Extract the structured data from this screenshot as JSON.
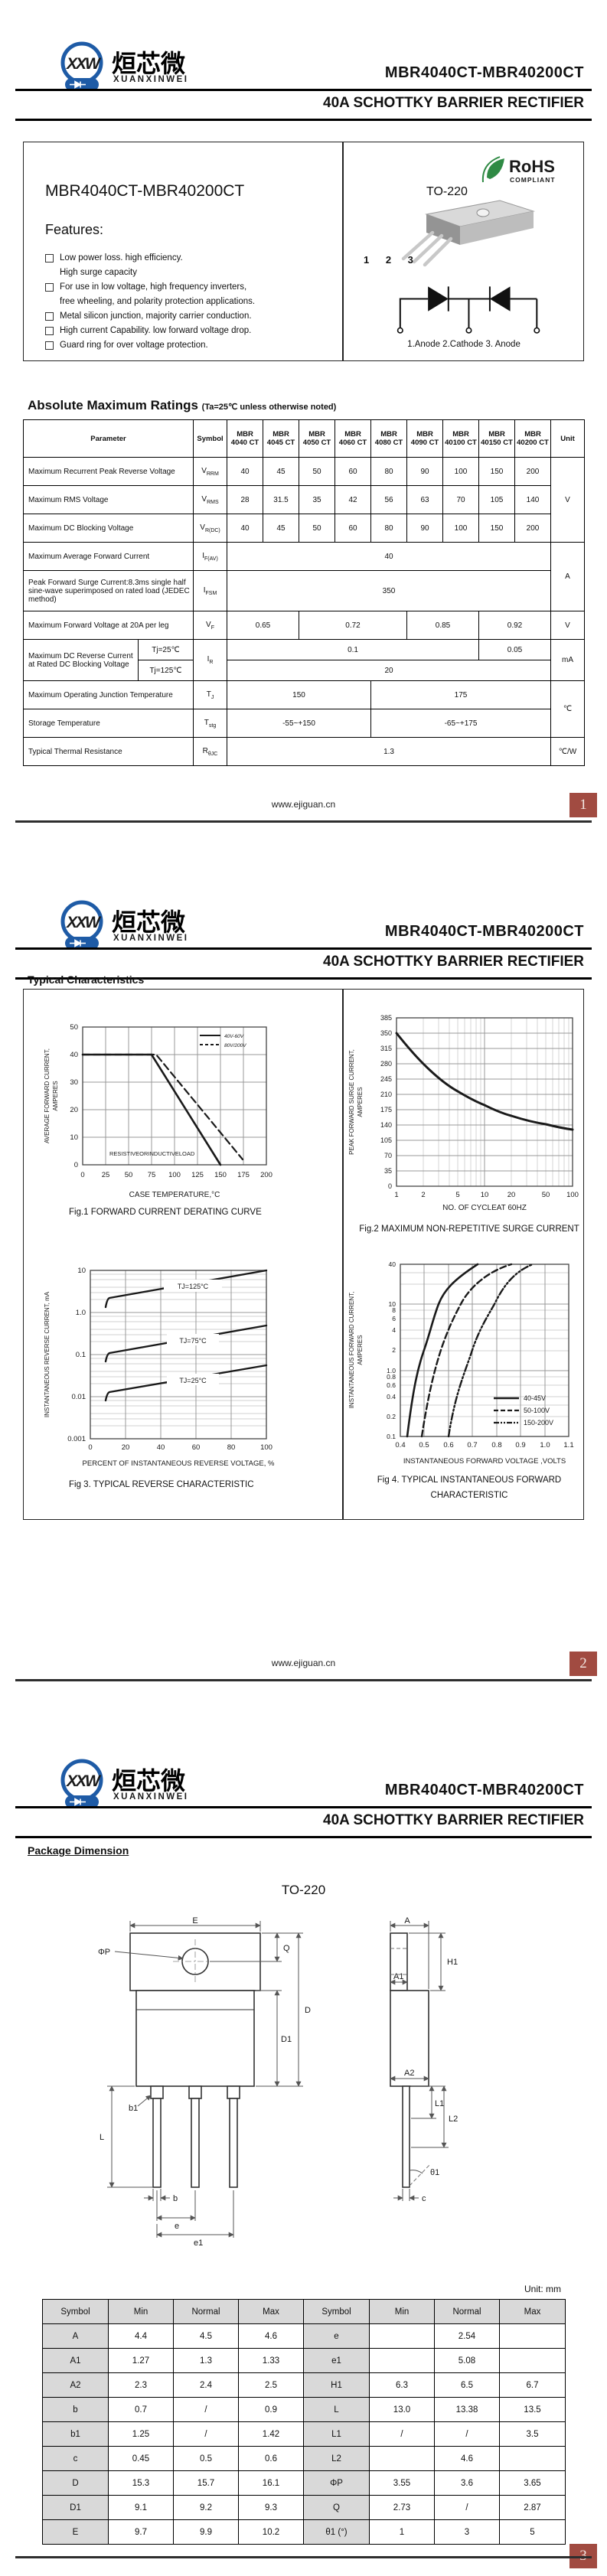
{
  "doc": {
    "brand": {
      "initials_x1": "X",
      "initials_x2": "X",
      "initials_w": "W",
      "name_cn": "烜芯微",
      "name_en": "XUANXINWEI"
    },
    "part_range": "MBR4040CT-MBR40200CT",
    "subtitle": "40A SCHOTTKY BARRIER RECTIFIER",
    "website": "www.ejiguan.cn",
    "accent_red": "#a14b41",
    "rohs_green": "#2f8a44",
    "logo_blue": "#1e5ba6"
  },
  "page1": {
    "page_no": "1",
    "product": {
      "heading": "MBR4040CT-MBR40200CT",
      "features_title": "Features:",
      "features": [
        [
          "Low power loss. high efficiency.",
          "High surge capacity"
        ],
        [
          "For use in low voltage, high frequency inverters,",
          "free wheeling, and polarity protection applications."
        ],
        [
          "Metal silicon junction, majority carrier conduction."
        ],
        [
          "High current Capability. low forward voltage drop."
        ],
        [
          "Guard ring for over voltage protection."
        ]
      ],
      "package_name": "TO-220",
      "rohs_line1": "RoHS",
      "rohs_line2": "COMPLIANT",
      "pin_numbers": "1 2 3",
      "pin_legend": "1.Anode   2.Cathode   3. Anode"
    },
    "ratings": {
      "title": "Absolute Maximum Ratings",
      "note": "(Ta=25℃ unless otherwise noted)",
      "headers": {
        "parameter": "Parameter",
        "symbol": "Symbol",
        "unit": "Unit",
        "parts": [
          "MBR 4040 CT",
          "MBR 4045 CT",
          "MBR 4050 CT",
          "MBR 4060 CT",
          "MBR 4080 CT",
          "MBR 4090 CT",
          "MBR 40100 CT",
          "MBR 40150 CT",
          "MBR 40200 CT"
        ]
      },
      "rows": {
        "vrrm": {
          "param": "Maximum Recurrent Peak Reverse Voltage",
          "sym": "V",
          "sub": "RRM",
          "vals": [
            "40",
            "45",
            "50",
            "60",
            "80",
            "90",
            "100",
            "150",
            "200"
          ]
        },
        "vrms": {
          "param": "Maximum RMS Voltage",
          "sym": "V",
          "sub": "RMS",
          "vals": [
            "28",
            "31.5",
            "35",
            "42",
            "56",
            "63",
            "70",
            "105",
            "140"
          ]
        },
        "vdc": {
          "param": "Maximum DC Blocking Voltage",
          "sym": "V",
          "sub": "R(DC)",
          "vals": [
            "40",
            "45",
            "50",
            "60",
            "80",
            "90",
            "100",
            "150",
            "200"
          ]
        },
        "ifav": {
          "param": "Maximum Average Forward Current",
          "sym": "I",
          "sub": "F(AV)",
          "val": "40"
        },
        "ifsm": {
          "param": "Peak Forward Surge Current:8.3ms single half sine-wave superimposed on rated load (JEDEC method)",
          "sym": "I",
          "sub": "FSM",
          "val": "350"
        },
        "vf": {
          "param": "Maximum Forward Voltage at 20A per leg",
          "sym": "V",
          "sub": "F",
          "v1": "0.65",
          "v2": "0.72",
          "v3": "0.85",
          "v4": "0.92"
        },
        "ir": {
          "param": "Maximum DC Reverse Current at Rated DC Blocking Voltage",
          "cond1": "Tj=25℃",
          "cond2": "Tj=125℃",
          "sym": "I",
          "sub": "R",
          "v25a": "0.1",
          "v25b": "0.05",
          "v125": "20"
        },
        "tj": {
          "param": "Maximum Operating Junction Temperature",
          "sym": "T",
          "sub": "J",
          "v1": "150",
          "v2": "175"
        },
        "tstg": {
          "param": "Storage Temperature",
          "sym": "T",
          "sub": "stg",
          "v1": "-55~+150",
          "v2": "-65~+175"
        },
        "rth": {
          "param": "Typical Thermal Resistance",
          "sym": "R",
          "sub": "θJC",
          "val": "1.3"
        }
      },
      "units": {
        "v1": "V",
        "a": "A",
        "v2": "V",
        "ma": "mA",
        "c": "℃",
        "cw": "℃/W"
      }
    }
  },
  "page2": {
    "page_no": "2",
    "section_title": "Typical Characteristics"
  },
  "chart_data": [
    {
      "type": "line",
      "title": "Fig.1 FORWARD CURRENT DERATING CURVE",
      "xlabel": "CASE TEMPERATURE,°C",
      "ylabel": "AVERAGE FORWARD CURRENT, AMPERES",
      "ylabel_lines": [
        "AVERAGE FORWARD CURRENT,",
        "AMPERES"
      ],
      "xlim": [
        0,
        200
      ],
      "ylim": [
        0,
        50
      ],
      "xticks": [
        "0",
        "25",
        "50",
        "75",
        "100",
        "125",
        "150",
        "175",
        "200"
      ],
      "yticks": [
        "50",
        "40",
        "30",
        "20",
        "10",
        "0"
      ],
      "grid": true,
      "legend_pos": "top-right",
      "annotation": "RESISTIVEORINDUCTIVELOAD",
      "series": [
        {
          "name": "40V-60V",
          "style": "solid",
          "points": [
            [
              0,
              40
            ],
            [
              75,
              40
            ],
            [
              150,
              0
            ]
          ]
        },
        {
          "name": "80V/200V",
          "style": "dashed",
          "points": [
            [
              0,
              40
            ],
            [
              80,
              40
            ],
            [
              175,
              2
            ]
          ]
        }
      ]
    },
    {
      "type": "line",
      "title": "Fig.2 MAXIMUM NON-REPETITIVE SURGE CURRENT",
      "xlabel": "NO. OF CYCLEAT 60HZ",
      "ylabel": "PEAK FORWARD SURGE CURRENT, AMPERES",
      "ylabel_lines": [
        "PEAK FORWARD SURGE CURRENT,",
        "AMPERES"
      ],
      "xscale": "log",
      "xlim": [
        1,
        100
      ],
      "ylim": [
        0,
        385
      ],
      "xticks": [
        "1",
        "2",
        "5",
        "10",
        "20",
        "50",
        "100"
      ],
      "yticks": [
        "385",
        "350",
        "315",
        "280",
        "245",
        "210",
        "175",
        "140",
        "105",
        "70",
        "35",
        "0"
      ],
      "grid": true,
      "series": [
        {
          "name": "surge current",
          "style": "solid",
          "points": [
            [
              1,
              350
            ],
            [
              2,
              280
            ],
            [
              5,
              220
            ],
            [
              10,
              185
            ],
            [
              20,
              162
            ],
            [
              50,
              142
            ],
            [
              100,
              130
            ]
          ]
        }
      ]
    },
    {
      "type": "line",
      "title": "Fig 3. TYPICAL REVERSE CHARACTERISTIC",
      "xlabel": "PERCENT OF INSTANTANEOUS REVERSE VOLTAGE, %",
      "ylabel": "INSTANTANEOUS  REVERSE  CURRENT, mA",
      "ylabel_lines": [
        "INSTANTANEOUS  REVERSE  CURRENT, mA"
      ],
      "yscale": "log",
      "xlim": [
        0,
        100
      ],
      "ylim": [
        0.001,
        10
      ],
      "xticks": [
        "0",
        "20",
        "40",
        "60",
        "80",
        "100"
      ],
      "yticks": [
        "10",
        "1.0",
        "0.1",
        "0.01",
        "0.001"
      ],
      "grid": true,
      "series": [
        {
          "name": "TJ=125°C",
          "style": "solid",
          "points": [
            [
              10,
              2.2
            ],
            [
              40,
              3.6
            ],
            [
              100,
              10
            ]
          ]
        },
        {
          "name": "TJ=75°C",
          "style": "solid",
          "points": [
            [
              10,
              0.11
            ],
            [
              40,
              0.2
            ],
            [
              100,
              0.5
            ]
          ]
        },
        {
          "name": "TJ=25°C",
          "style": "solid",
          "points": [
            [
              10,
              0.013
            ],
            [
              40,
              0.022
            ],
            [
              100,
              0.055
            ]
          ]
        }
      ]
    },
    {
      "type": "line",
      "title": "Fig 4. TYPICAL INSTANTANEOUS FORWARD CHARACTERISTIC",
      "caption_lines": [
        "Fig 4. TYPICAL INSTANTANEOUS FORWARD",
        "CHARACTERISTIC"
      ],
      "xlabel": "INSTANTANEOUS  FORWARD  VOLTAGE ,VOLTS",
      "ylabel": "INSTANTANEOUS FORWARD CURRENT, AMPERES",
      "ylabel_lines": [
        "INSTANTANEOUS FORWARD CURRENT,",
        "AMPERES"
      ],
      "yscale": "log",
      "xlim": [
        0.4,
        1.1
      ],
      "ylim": [
        0.1,
        40
      ],
      "xticks": [
        "0.4",
        "0.5",
        "0.6",
        "0.7",
        "0.8",
        "0.9",
        "1.0",
        "1.1"
      ],
      "yticks": [
        "40",
        "10",
        "8",
        "6",
        "4",
        "2",
        "1.0",
        "0.8",
        "0.6",
        "0.4",
        "0.2",
        "0.1"
      ],
      "grid": true,
      "legend_pos": "bottom-right",
      "series": [
        {
          "name": "40-45V",
          "style": "solid",
          "points": [
            [
              0.43,
              0.1
            ],
            [
              0.5,
              2
            ],
            [
              0.56,
              10
            ],
            [
              0.72,
              40
            ]
          ]
        },
        {
          "name": "50-100V",
          "style": "dashed",
          "points": [
            [
              0.49,
              0.1
            ],
            [
              0.57,
              2
            ],
            [
              0.65,
              10
            ],
            [
              0.86,
              40
            ]
          ]
        },
        {
          "name": "150-200V",
          "style": "dashdot",
          "points": [
            [
              0.6,
              0.1
            ],
            [
              0.7,
              2
            ],
            [
              0.79,
              10
            ],
            [
              0.95,
              40
            ]
          ]
        }
      ]
    }
  ],
  "page3": {
    "page_no": "3",
    "section_title": "Package Dimension",
    "package_name": "TO-220",
    "unit_note": "Unit: mm",
    "dim_labels": {
      "E": "E",
      "phiP": "ΦP",
      "Q": "Q",
      "D": "D",
      "D1": "D1",
      "L": "L",
      "b": "b",
      "b1": "b1",
      "e": "e",
      "e1": "e1",
      "A": "A",
      "A1": "A1",
      "A2": "A2",
      "H1": "H1",
      "L1": "L1",
      "L2": "L2",
      "c": "c",
      "theta1": "θ1"
    },
    "dim_table": {
      "headers": [
        "Symbol",
        "Min",
        "Normal",
        "Max",
        "Symbol",
        "Min",
        "Normal",
        "Max"
      ],
      "rows": [
        [
          "A",
          "4.4",
          "4.5",
          "4.6",
          "e",
          "",
          "2.54",
          ""
        ],
        [
          "A1",
          "1.27",
          "1.3",
          "1.33",
          "e1",
          "",
          "5.08",
          ""
        ],
        [
          "A2",
          "2.3",
          "2.4",
          "2.5",
          "H1",
          "6.3",
          "6.5",
          "6.7"
        ],
        [
          "b",
          "0.7",
          "/",
          "0.9",
          "L",
          "13.0",
          "13.38",
          "13.5"
        ],
        [
          "b1",
          "1.25",
          "/",
          "1.42",
          "L1",
          "/",
          "/",
          "3.5"
        ],
        [
          "c",
          "0.45",
          "0.5",
          "0.6",
          "L2",
          "",
          "4.6",
          ""
        ],
        [
          "D",
          "15.3",
          "15.7",
          "16.1",
          "ΦP",
          "3.55",
          "3.6",
          "3.65"
        ],
        [
          "D1",
          "9.1",
          "9.2",
          "9.3",
          "Q",
          "2.73",
          "/",
          "2.87"
        ],
        [
          "E",
          "9.7",
          "9.9",
          "10.2",
          "θ1 (°)",
          "1",
          "3",
          "5"
        ]
      ]
    }
  }
}
